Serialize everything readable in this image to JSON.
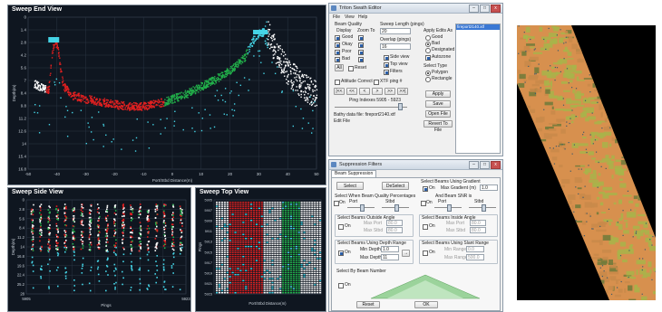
{
  "end_view": {
    "title": "Sweep End View",
    "ylabel": "Depth(m)",
    "xlabel": "Port/Stbd Distance(m)",
    "xticks": [
      "-50",
      "-40",
      "-30",
      "-20",
      "-10",
      "0",
      "10",
      "20",
      "30",
      "40",
      "50"
    ],
    "yticks": [
      "0",
      "1.4",
      "2.8",
      "4.2",
      "5.6",
      "7",
      "8.4",
      "9.8",
      "11.2",
      "12.6",
      "14",
      "15.4",
      "16.8"
    ]
  },
  "side_view": {
    "title": "Sweep Side View",
    "ylabel": "Depth(m)",
    "xlabel": "Pings",
    "xticks": [
      "5905",
      "",
      "",
      "",
      "",
      "",
      "",
      "5923"
    ],
    "yticks": [
      "0",
      "2.8",
      "5.6",
      "8.4",
      "11.2",
      "14",
      "16.8",
      "19.6",
      "22.4",
      "25.2",
      "28"
    ]
  },
  "top_view": {
    "title": "Sweep Top View",
    "ylabel": "Pings",
    "xlabel": "Port/Stbd Distance(m)",
    "yticks": [
      "5905",
      "5907",
      "5909",
      "5911",
      "5913",
      "5915",
      "5917",
      "5919",
      "5921",
      "5923"
    ]
  },
  "swath_editor": {
    "title": "Triton Swath Editor",
    "menu": [
      "File",
      "View",
      "Help"
    ],
    "beam_quality_label": "Beam Quality",
    "display_label": "Display",
    "zoom_to_label": "Zoom To",
    "quality_items": [
      "Good",
      "Okay",
      "Poor",
      "Bad"
    ],
    "all_label": "All",
    "reset_label": "Reset",
    "sweep_length_label": "Sweep Length (pings)",
    "sweep_length_value": "20",
    "overlap_label": "Overlap (pings)",
    "overlap_value": "16",
    "view_checks": [
      "Side view",
      "Top view",
      "Filters"
    ],
    "attitude_label": "Attitude Correct",
    "xtf_ping_label": "XTF ping #",
    "nav_buttons": [
      "|<<",
      "<<",
      "<",
      ">",
      ">>",
      ">>|"
    ],
    "ping_indexes": "Ping Indexes 5905 - 5923",
    "bathy_file": "Bathy data file: fireport2140.xtf",
    "edit_file": "Edit File",
    "apply_edits_label": "Apply Edits As",
    "apply_edits_options": [
      "Good",
      "Bad",
      "Designated"
    ],
    "autozone_label": "Autozone",
    "select_type_label": "Select Type",
    "select_type_options": [
      "Polygon",
      "Rectangle"
    ],
    "buttons": [
      "Apply",
      "Save",
      "Open File",
      "Revert To File"
    ],
    "file_list": [
      "fireport2140.xtf"
    ]
  },
  "suppression": {
    "title": "Suppression Filters",
    "tab": "Beam Suppression",
    "select_label": "Select",
    "deselect_label": "DeSelect",
    "beams_gradient_label": "Select Beams Using Gradient",
    "on_label": "On",
    "max_gradient_label": "Max Gradient (m)",
    "max_gradient_value": "1.0",
    "beam_quality_pct_label": "Select When Beam Quality Percentages",
    "and_beam_snr_label": "And Beam SNR is",
    "port_label": "Port",
    "stbd_label": "Stbd",
    "outside_angle_label": "Select Beams Outside Angle",
    "inside_angle_label": "Select Beams Inside Angle",
    "max_port_label": "Max Port",
    "max_port_value": "80.0",
    "max_stbd_label": "Max Stbd",
    "max_stbd_value": "80.0",
    "depth_range_label": "Select Beams Using Depth Range",
    "min_depth_label": "Min Depth",
    "min_depth_value": "1.0",
    "max_depth_label": "Max Depth",
    "max_depth_value": "11",
    "slant_range_label": "Select Beams Using Slant Range",
    "min_range_label": "Min Range",
    "min_range_value": "0.0",
    "max_range_label": "Max Range",
    "max_range_value": "500.0",
    "beam_number_label": "Select By Beam Number",
    "reset_label": "Reset",
    "ok_label": "OK"
  },
  "colors": {
    "good": "#22b04a",
    "okay": "#ffffff",
    "poor": "#45d4e6",
    "bad": "#e02020",
    "plot_bg": "#0f1620",
    "map_orange": "#d7904e",
    "map_green": "#a8b44a"
  }
}
